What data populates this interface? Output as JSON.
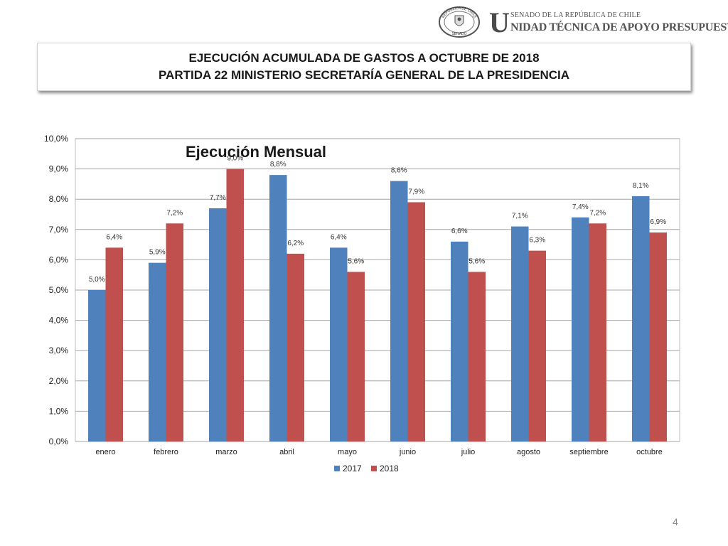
{
  "header": {
    "logo_letter": "U",
    "org_line1": "SENADO DE LA REPÚBLICA DE CHILE",
    "org_line2": "NIDAD TÉCNICA DE APOYO PRESUPUESTARIO",
    "seal_top": "REPÚBLICA DE CHILE",
    "seal_bottom": "SENADO"
  },
  "title": {
    "line1": "EJECUCIÓN ACUMULADA DE GASTOS A OCTUBRE DE 2018",
    "line2": "PARTIDA 22 MINISTERIO SECRETARÍA GENERAL DE LA PRESIDENCIA"
  },
  "page_number": "4",
  "chart_data": {
    "type": "bar",
    "title": "Ejecución Mensual",
    "categories": [
      "enero",
      "febrero",
      "marzo",
      "abril",
      "mayo",
      "junio",
      "julio",
      "agosto",
      "septiembre",
      "octubre"
    ],
    "series": [
      {
        "name": "2017",
        "color": "#4f81bd",
        "values": [
          5.0,
          5.9,
          7.7,
          8.8,
          6.4,
          8.6,
          6.6,
          7.1,
          7.4,
          8.1
        ],
        "labels": [
          "5,0%",
          "5,9%",
          "7,7%",
          "8,8%",
          "6,4%",
          "8,6%",
          "6,6%",
          "7,1%",
          "7,4%",
          "8,1%"
        ]
      },
      {
        "name": "2018",
        "color": "#c0504d",
        "values": [
          6.4,
          7.2,
          9.0,
          6.2,
          5.6,
          7.9,
          5.6,
          6.3,
          7.2,
          6.9
        ],
        "labels": [
          "6,4%",
          "7,2%",
          "9,0%",
          "6,2%",
          "5,6%",
          "7,9%",
          "5,6%",
          "6,3%",
          "7,2%",
          "6,9%"
        ]
      }
    ],
    "ylim": [
      0,
      10
    ],
    "yticks": [
      0,
      1,
      2,
      3,
      4,
      5,
      6,
      7,
      8,
      9,
      10
    ],
    "ytick_labels": [
      "0,0%",
      "1,0%",
      "2,0%",
      "3,0%",
      "4,0%",
      "5,0%",
      "6,0%",
      "7,0%",
      "8,0%",
      "9,0%",
      "10,0%"
    ],
    "grid": true,
    "legend": "bottom"
  }
}
